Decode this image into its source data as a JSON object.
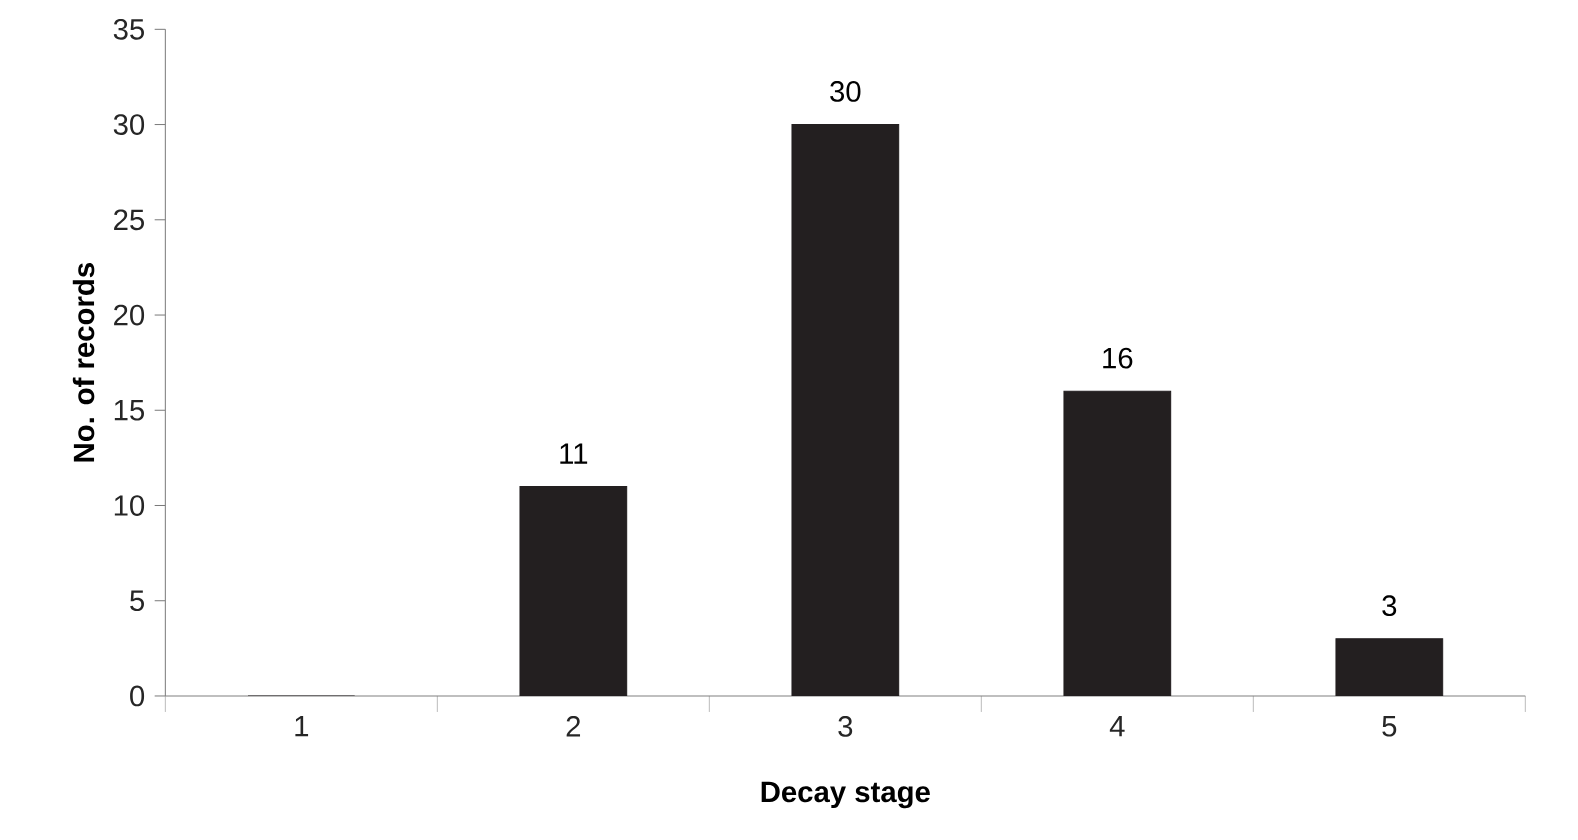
{
  "chart_data": {
    "type": "bar",
    "xlabel": "Decay stage",
    "ylabel": "No. of records",
    "categories": [
      "1",
      "2",
      "3",
      "4",
      "5"
    ],
    "values": [
      0,
      11,
      30,
      16,
      3
    ],
    "value_labels": [
      null,
      "11",
      "30",
      "16",
      "3"
    ],
    "color": "#231f20",
    "ylim": [
      0,
      35
    ],
    "yticks": [
      0,
      5,
      10,
      15,
      20,
      25,
      30,
      35
    ]
  }
}
